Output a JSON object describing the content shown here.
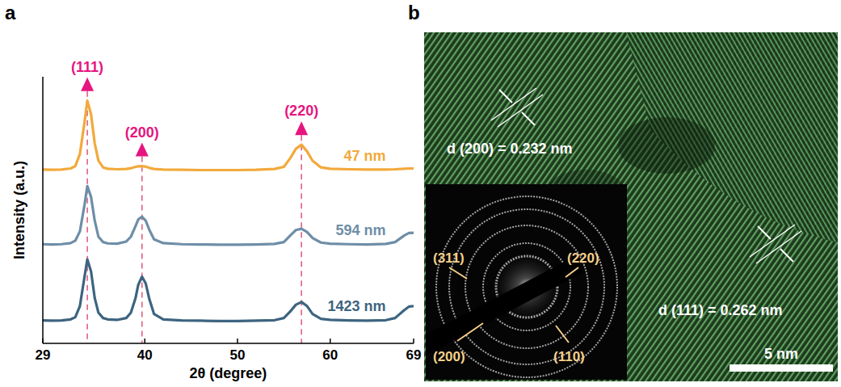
{
  "chart_data": {
    "type": "line",
    "panel_label": "a",
    "x_label": "2θ (degree)",
    "y_label": "Intensity (a.u.)",
    "xlim": [
      29,
      69
    ],
    "xticks": [
      29,
      40,
      50,
      60,
      69
    ],
    "ylim": [
      0,
      10
    ],
    "yticks": [],
    "tick_labels": "x",
    "grid": false,
    "x": [
      29,
      30,
      31,
      32,
      32.5,
      33,
      33.5,
      33.8,
      34.2,
      34.6,
      35,
      35.5,
      36,
      37,
      38,
      38.5,
      39,
      39.3,
      39.7,
      40.1,
      40.5,
      41,
      42,
      44,
      46,
      48,
      50,
      52,
      54,
      55,
      55.7,
      56.3,
      56.9,
      57.5,
      58.1,
      59,
      60,
      62,
      64,
      66,
      67,
      68,
      68.5,
      69
    ],
    "series": [
      {
        "name": "47 nm",
        "color": "#f2a93b",
        "values": [
          6.52,
          6.51,
          6.52,
          6.56,
          6.65,
          7.1,
          8.3,
          9.1,
          8.6,
          7.5,
          6.85,
          6.6,
          6.55,
          6.53,
          6.54,
          6.57,
          6.62,
          6.64,
          6.65,
          6.63,
          6.58,
          6.54,
          6.52,
          6.51,
          6.5,
          6.5,
          6.5,
          6.51,
          6.54,
          6.62,
          6.95,
          7.3,
          7.45,
          7.2,
          6.85,
          6.6,
          6.55,
          6.53,
          6.52,
          6.52,
          6.53,
          6.55,
          6.56,
          6.56
        ]
      },
      {
        "name": "594 nm",
        "color": "#6e8ea8",
        "values": [
          3.72,
          3.71,
          3.72,
          3.76,
          3.85,
          4.2,
          5.2,
          5.9,
          5.5,
          4.6,
          4.0,
          3.8,
          3.75,
          3.74,
          3.82,
          4.0,
          4.4,
          4.65,
          4.75,
          4.6,
          4.25,
          3.9,
          3.76,
          3.72,
          3.71,
          3.7,
          3.7,
          3.71,
          3.73,
          3.8,
          4.05,
          4.25,
          4.3,
          4.18,
          3.95,
          3.78,
          3.74,
          3.72,
          3.71,
          3.73,
          3.8,
          4.05,
          4.14,
          4.15
        ]
      },
      {
        "name": "1423 nm",
        "color": "#3d6480",
        "values": [
          0.86,
          0.85,
          0.86,
          0.9,
          0.98,
          1.4,
          2.5,
          3.15,
          2.7,
          1.7,
          1.15,
          0.95,
          0.9,
          0.88,
          0.95,
          1.15,
          1.7,
          2.2,
          2.5,
          2.25,
          1.65,
          1.1,
          0.9,
          0.86,
          0.85,
          0.84,
          0.84,
          0.85,
          0.87,
          0.95,
          1.2,
          1.45,
          1.55,
          1.4,
          1.1,
          0.92,
          0.88,
          0.86,
          0.85,
          0.87,
          0.95,
          1.25,
          1.38,
          1.4
        ]
      }
    ],
    "annotations": [
      {
        "x": 33.8,
        "label": "(111)"
      },
      {
        "x": 39.7,
        "label": "(200)"
      },
      {
        "x": 56.9,
        "label": "(220)"
      }
    ]
  },
  "panel_b": {
    "panel_label": "b",
    "d_labels": [
      "d (200) = 0.232 nm",
      "d (111) = 0.262 nm"
    ],
    "scale_bar": "5 nm",
    "saed_rings": [
      "(311)",
      "(220)",
      "(200)",
      "(110)"
    ]
  }
}
